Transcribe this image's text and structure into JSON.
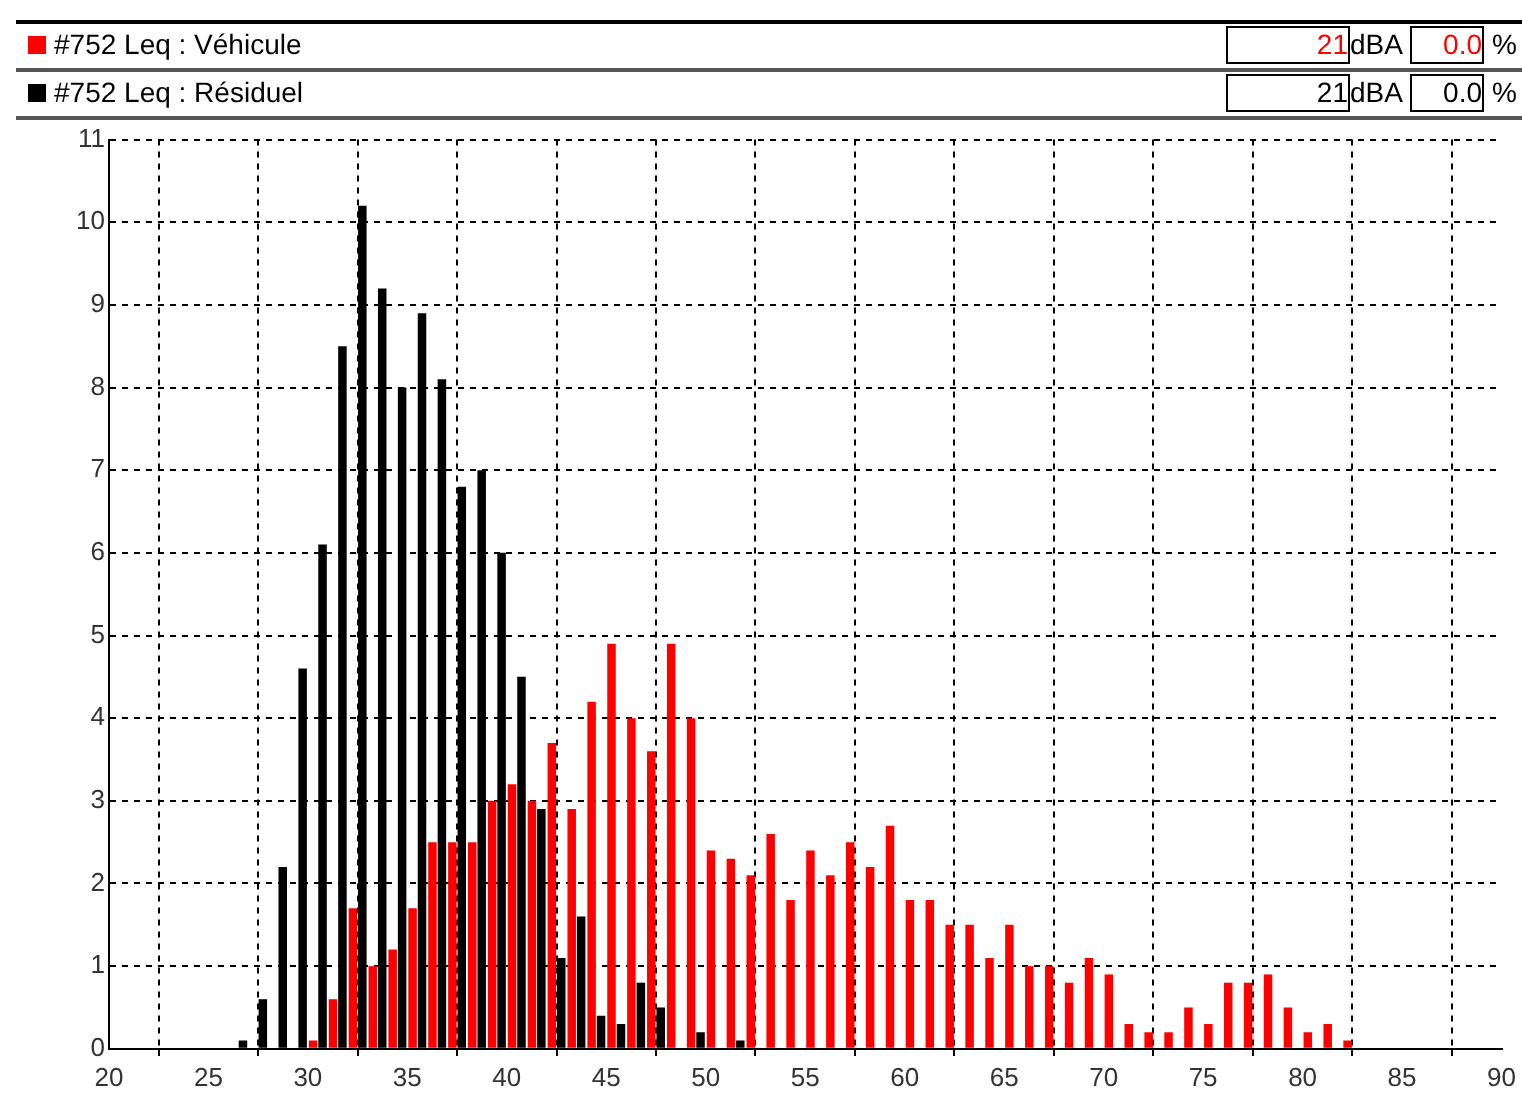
{
  "chart_data": {
    "type": "bar",
    "legend": "top",
    "grid": true,
    "x": [
      26.5,
      27.5,
      28.5,
      29.5,
      30.5,
      31.5,
      32.5,
      33.5,
      34.5,
      35.5,
      36.5,
      37.5,
      38.5,
      39.5,
      40.5,
      41.5,
      42.5,
      43.5,
      44.5,
      45.5,
      46.5,
      47.5,
      48.5,
      49.5,
      50.5,
      51.5,
      52.5,
      53.5,
      54.5,
      55.5,
      56.5,
      57.5,
      58.5,
      59.5,
      60.5,
      61.5,
      62.5,
      63.5,
      64.5,
      65.5,
      66.5,
      67.5,
      68.5,
      69.5,
      70.5,
      71.5,
      72.5,
      73.5,
      74.5,
      75.5,
      76.5,
      77.5,
      78.5,
      79.5,
      80.5,
      81.5,
      82.5
    ],
    "series": [
      {
        "name": "#752 Leq : Véhicule",
        "color": "#ff0000",
        "values": [
          null,
          null,
          null,
          null,
          0.1,
          0.6,
          1.7,
          1.0,
          1.2,
          1.7,
          2.5,
          2.5,
          2.5,
          3.0,
          3.2,
          3.0,
          3.7,
          2.9,
          4.2,
          4.9,
          4.0,
          3.6,
          4.9,
          4.0,
          2.4,
          2.3,
          2.1,
          2.6,
          1.8,
          2.4,
          2.1,
          2.5,
          2.2,
          2.7,
          1.8,
          1.8,
          1.5,
          1.5,
          1.1,
          1.5,
          1.0,
          1.0,
          0.8,
          1.1,
          0.9,
          0.3,
          0.2,
          0.2,
          0.5,
          0.3,
          0.8,
          0.8,
          0.9,
          0.5,
          0.2,
          0.3,
          0.1
        ]
      },
      {
        "name": "#752 Leq : Résiduel",
        "color": "#000000",
        "values": [
          0.1,
          0.6,
          2.2,
          4.6,
          6.1,
          8.5,
          10.2,
          9.2,
          8.0,
          8.9,
          8.1,
          6.8,
          7.0,
          6.0,
          4.5,
          2.9,
          1.1,
          1.6,
          0.4,
          0.3,
          0.8,
          0.5,
          null,
          0.2,
          null,
          0.1,
          null,
          null,
          null,
          null,
          null,
          null,
          null,
          null,
          null,
          null,
          null,
          null,
          null,
          null,
          null,
          null,
          null,
          null,
          null,
          null,
          null,
          null,
          null,
          null,
          null,
          null,
          null,
          null,
          null,
          null,
          null
        ]
      }
    ],
    "annotations": [
      "21",
      "dBA",
      "0.0",
      "%",
      "21",
      "dBA",
      "0.0",
      "%"
    ],
    "xlim": [
      20,
      90
    ],
    "xticks": [
      20,
      25,
      30,
      35,
      40,
      45,
      50,
      55,
      60,
      65,
      70,
      75,
      80,
      85,
      90
    ],
    "ylim": [
      0,
      11
    ],
    "yticks": [
      0,
      1,
      2,
      3,
      4,
      5,
      6,
      7,
      8,
      9,
      10,
      11
    ]
  }
}
